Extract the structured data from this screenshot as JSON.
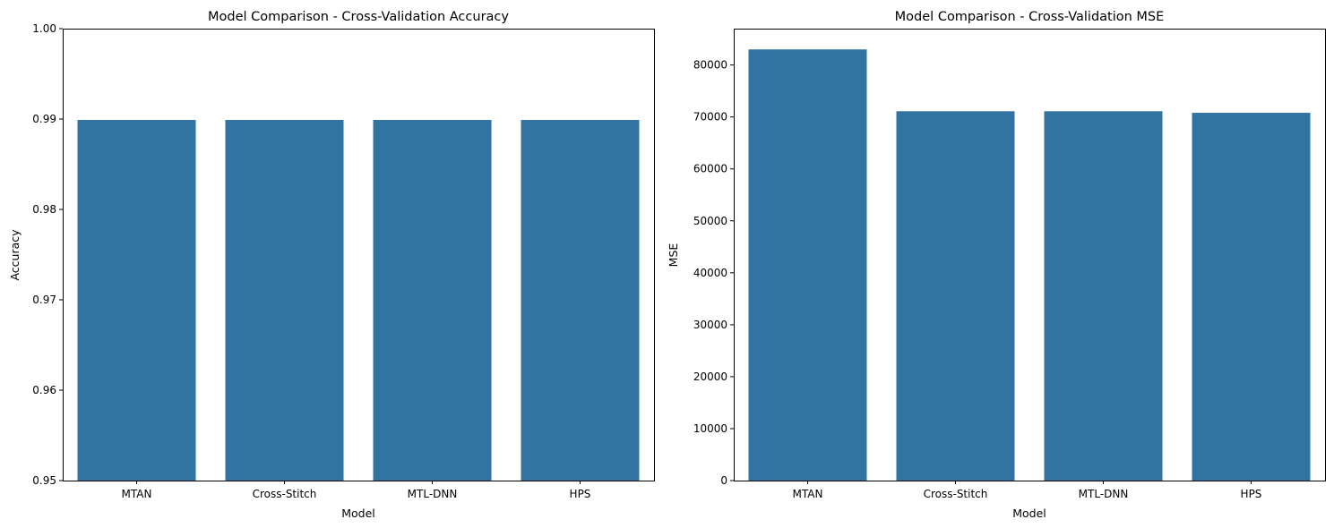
{
  "chart_data": [
    {
      "type": "bar",
      "title": "Model Comparison - Cross-Validation Accuracy",
      "xlabel": "Model",
      "ylabel": "Accuracy",
      "categories": [
        "MTAN",
        "Cross-Stitch",
        "MTL-DNN",
        "HPS"
      ],
      "values": [
        0.9899,
        0.9899,
        0.9899,
        0.9899
      ],
      "ylim": [
        0.95,
        1.0
      ],
      "yticks": [
        0.95,
        0.96,
        0.97,
        0.98,
        0.99,
        1.0
      ],
      "ytick_labels": [
        "0.95",
        "0.96",
        "0.97",
        "0.98",
        "0.99",
        "1.00"
      ],
      "bar_color": "#3274a1",
      "grid": false
    },
    {
      "type": "bar",
      "title": "Model Comparison - Cross-Validation MSE",
      "xlabel": "Model",
      "ylabel": "MSE",
      "categories": [
        "MTAN",
        "Cross-Stitch",
        "MTL-DNN",
        "HPS"
      ],
      "values": [
        83000,
        71100,
        71100,
        70800
      ],
      "ylim": [
        0,
        87000
      ],
      "yticks": [
        0,
        10000,
        20000,
        30000,
        40000,
        50000,
        60000,
        70000,
        80000
      ],
      "ytick_labels": [
        "0",
        "10000",
        "20000",
        "30000",
        "40000",
        "50000",
        "60000",
        "70000",
        "80000"
      ],
      "bar_color": "#3274a1",
      "grid": false
    }
  ]
}
